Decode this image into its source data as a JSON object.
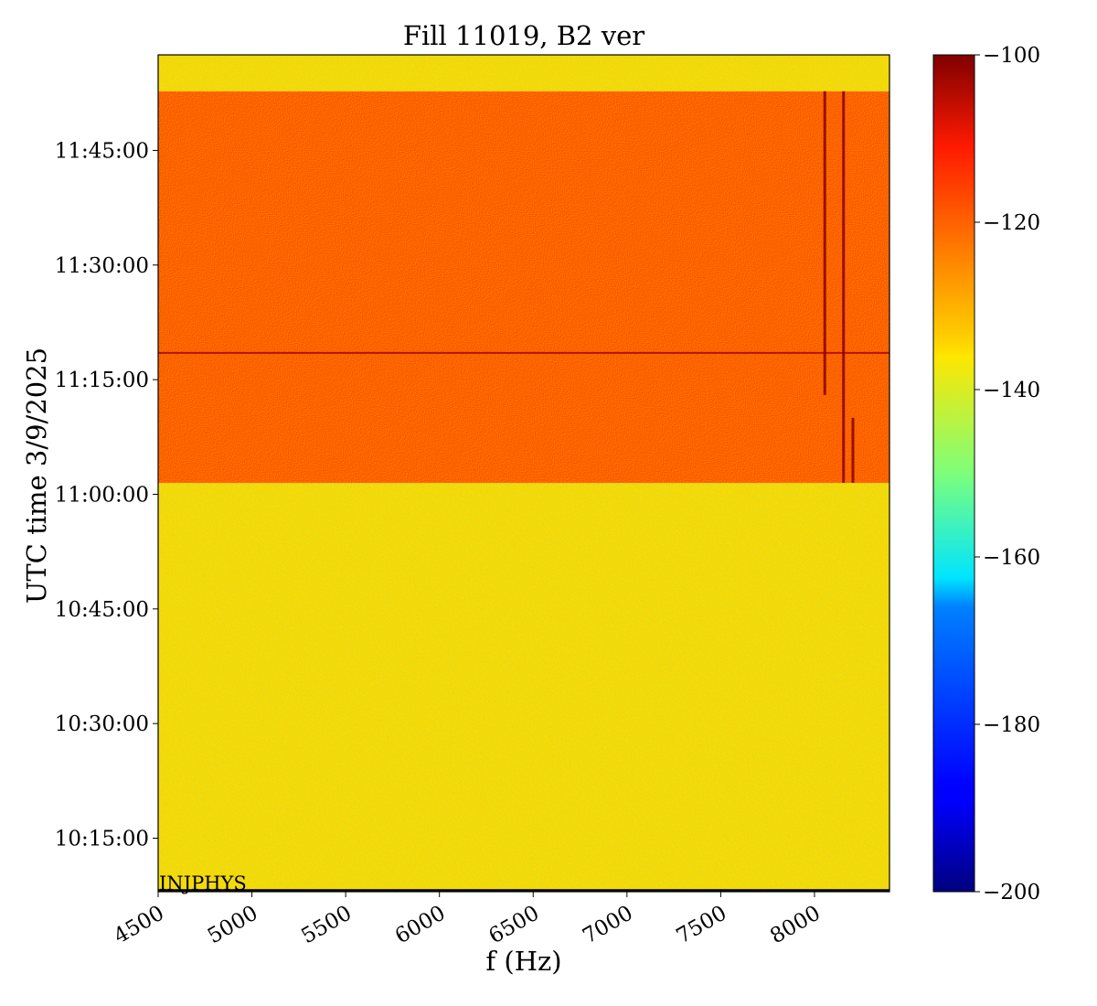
{
  "chart_data": {
    "type": "heatmap",
    "title": "Fill 11019, B2 ver",
    "xlabel": "f (Hz)",
    "ylabel": "UTC time 3/9/2025",
    "xlim": [
      4500,
      8400
    ],
    "ylim": [
      "10:08:00",
      "11:57:30"
    ],
    "x_ticks": [
      "4500",
      "5000",
      "5500",
      "6000",
      "6500",
      "7000",
      "7500",
      "8000"
    ],
    "y_ticks": [
      "10:15:00",
      "10:30:00",
      "10:45:00",
      "11:00:00",
      "11:15:00",
      "11:30:00",
      "11:45:00"
    ],
    "colorbar": {
      "colormap": "jet",
      "range": [
        -200,
        -100
      ],
      "ticks": [
        "−100",
        "−120",
        "−140",
        "−160",
        "−180",
        "−200"
      ]
    },
    "annotation": "INJPHYS",
    "regions": [
      {
        "time_start": "10:08:00",
        "time_end": "11:01:30",
        "level_db": -134,
        "description": "background"
      },
      {
        "time_start": "11:01:30",
        "time_end": "11:52:45",
        "level_db": -122,
        "description": "beam signal"
      },
      {
        "time_start": "11:52:45",
        "time_end": "11:57:30",
        "level_db": -134,
        "description": "background"
      }
    ],
    "features": [
      {
        "type": "vertical-line",
        "f_hz": 8055,
        "time_start": "11:13:00",
        "time_end": "11:52:45"
      },
      {
        "type": "vertical-line",
        "f_hz": 8155,
        "time_start": "11:01:30",
        "time_end": "11:52:45"
      },
      {
        "type": "vertical-line",
        "f_hz": 8205,
        "time_start": "11:01:30",
        "time_end": "11:10:00"
      },
      {
        "type": "horizontal-line",
        "time": "11:18:30",
        "f_start_hz": 4500,
        "f_end_hz": 8400
      }
    ]
  }
}
